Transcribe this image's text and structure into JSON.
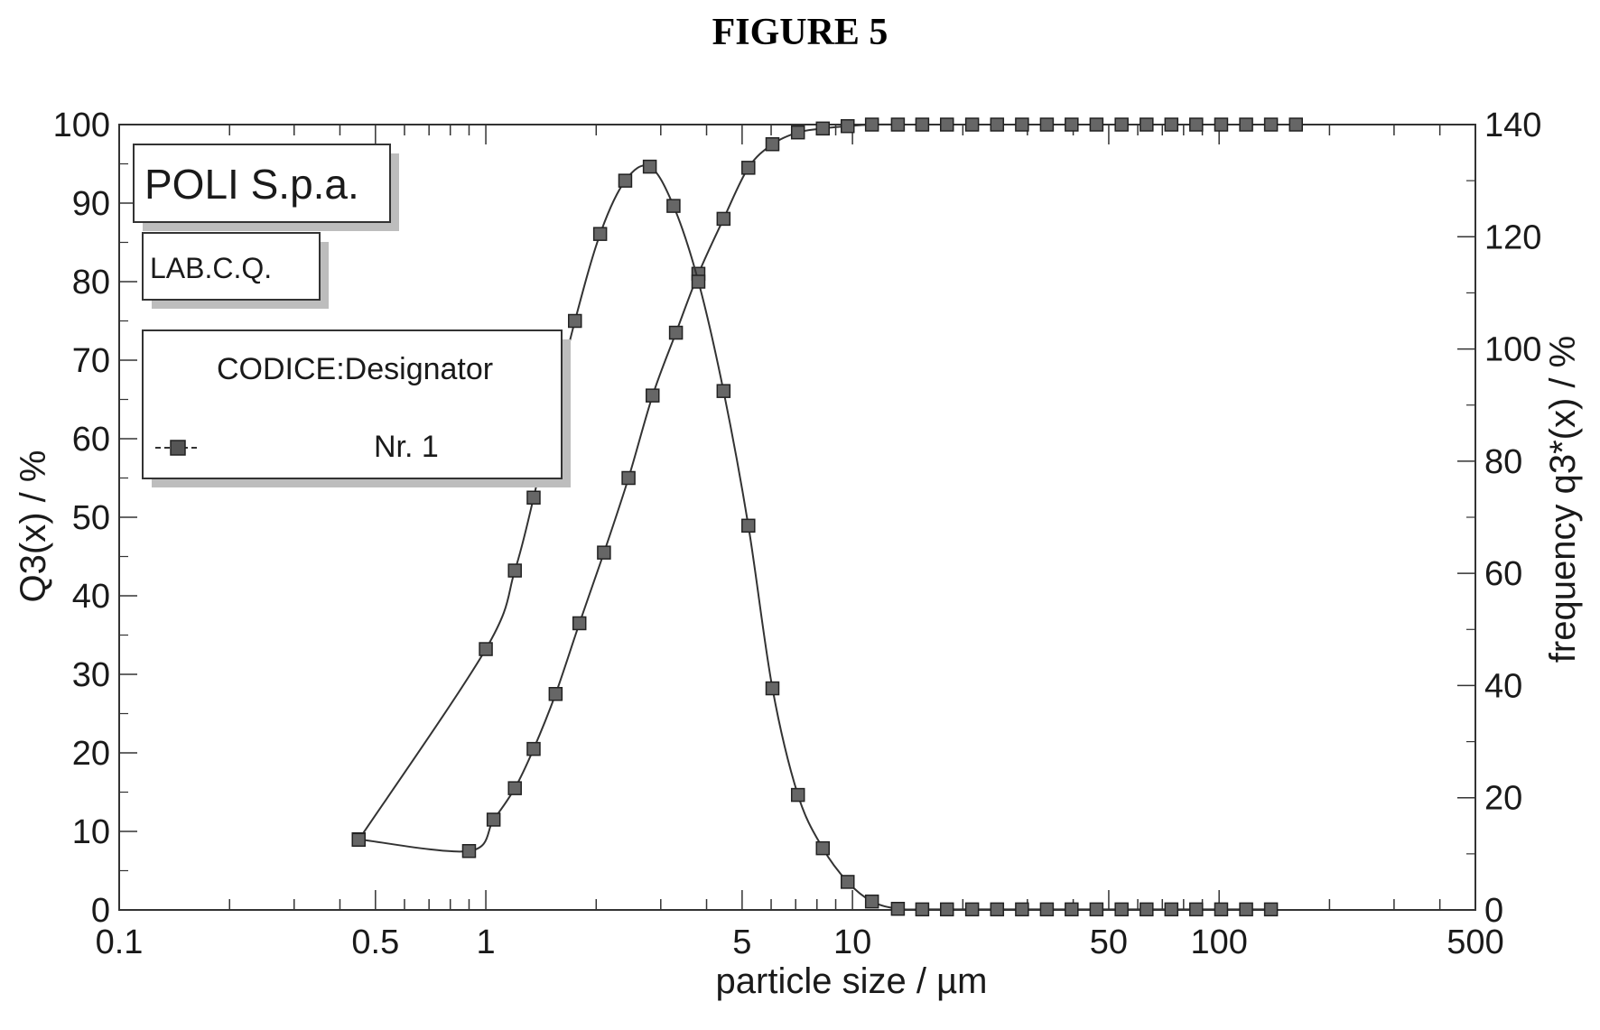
{
  "figure_title": "FIGURE 5",
  "chart_data": {
    "type": "line",
    "title": "",
    "xlabel": "particle size / µm",
    "ylabel_left": "Q3(x) / %",
    "ylabel_right": "frequency q3*(x) / %",
    "x_scale": "log",
    "xlim": [
      0.1,
      500
    ],
    "ylim_left": [
      0,
      100
    ],
    "ylim_right": [
      0,
      140
    ],
    "x_ticks": [
      0.1,
      0.5,
      1,
      5,
      10,
      50,
      100,
      500
    ],
    "x_tick_labels": [
      "0.1",
      "0.5",
      "1",
      "5",
      "10",
      "50",
      "100",
      "500"
    ],
    "y_left_ticks": [
      0,
      10,
      20,
      30,
      40,
      50,
      60,
      70,
      80,
      90,
      100
    ],
    "y_left_tick_labels": [
      "0",
      "10",
      "20",
      "30",
      "40",
      "50",
      "60",
      "70",
      "80",
      "90",
      "100"
    ],
    "y_right_ticks": [
      0,
      20,
      40,
      60,
      80,
      100,
      120,
      140
    ],
    "y_right_tick_labels": [
      "0",
      "20",
      "40",
      "60",
      "80",
      "100",
      "120",
      "140"
    ],
    "grid": false,
    "marker": "square",
    "line_color": "#333333",
    "series": [
      {
        "axis": "left",
        "x": [
          0.45,
          0.9,
          1.05,
          1.2,
          1.35,
          1.55,
          1.8,
          2.1,
          2.45,
          2.85,
          3.3,
          3.8,
          4.45,
          5.2,
          6.05,
          7.1,
          8.3,
          9.7,
          11.3,
          13.3,
          15.5,
          18.1,
          21.2,
          24.8,
          29.0,
          33.9,
          39.6,
          46.3,
          54.2,
          63.4,
          74.1,
          86.6,
          101.3,
          118.5,
          138.5,
          162.0
        ],
        "y": [
          9,
          7.5,
          11.5,
          15.5,
          20.5,
          27.5,
          36.5,
          45.5,
          55,
          65.5,
          73.5,
          81,
          88,
          94.5,
          97.5,
          99,
          99.5,
          99.8,
          100,
          100,
          100,
          100,
          100,
          100,
          100,
          100,
          100,
          100,
          100,
          100,
          100,
          100,
          100,
          100,
          100,
          100
        ]
      },
      {
        "axis": "right",
        "x": [
          0.45,
          1.0,
          1.2,
          1.35,
          1.5,
          1.75,
          2.05,
          2.4,
          2.8,
          3.25,
          3.8,
          4.45,
          5.2,
          6.05,
          7.1,
          8.3,
          9.7,
          11.3,
          13.3,
          15.5,
          18.1,
          21.2,
          24.8,
          29.0,
          33.9,
          39.6,
          46.3,
          54.2,
          63.4,
          74.1,
          86.6,
          101.3,
          118.5,
          138.5
        ],
        "y": [
          12.5,
          46.5,
          60.5,
          73.5,
          87,
          105,
          120.5,
          130,
          132.5,
          125.5,
          112,
          92.5,
          68.5,
          39.5,
          20.5,
          11,
          5,
          1.5,
          0.2,
          0.1,
          0.1,
          0.1,
          0.1,
          0.1,
          0.1,
          0.1,
          0.1,
          0.1,
          0.1,
          0.1,
          0.1,
          0.1,
          0.1,
          0.1
        ]
      }
    ],
    "annotations": {
      "company": "POLI S.p.a.",
      "lab": "LAB.C.Q.",
      "legend_title": "CODICE:Designator",
      "legend_entry": "Nr. 1"
    }
  }
}
